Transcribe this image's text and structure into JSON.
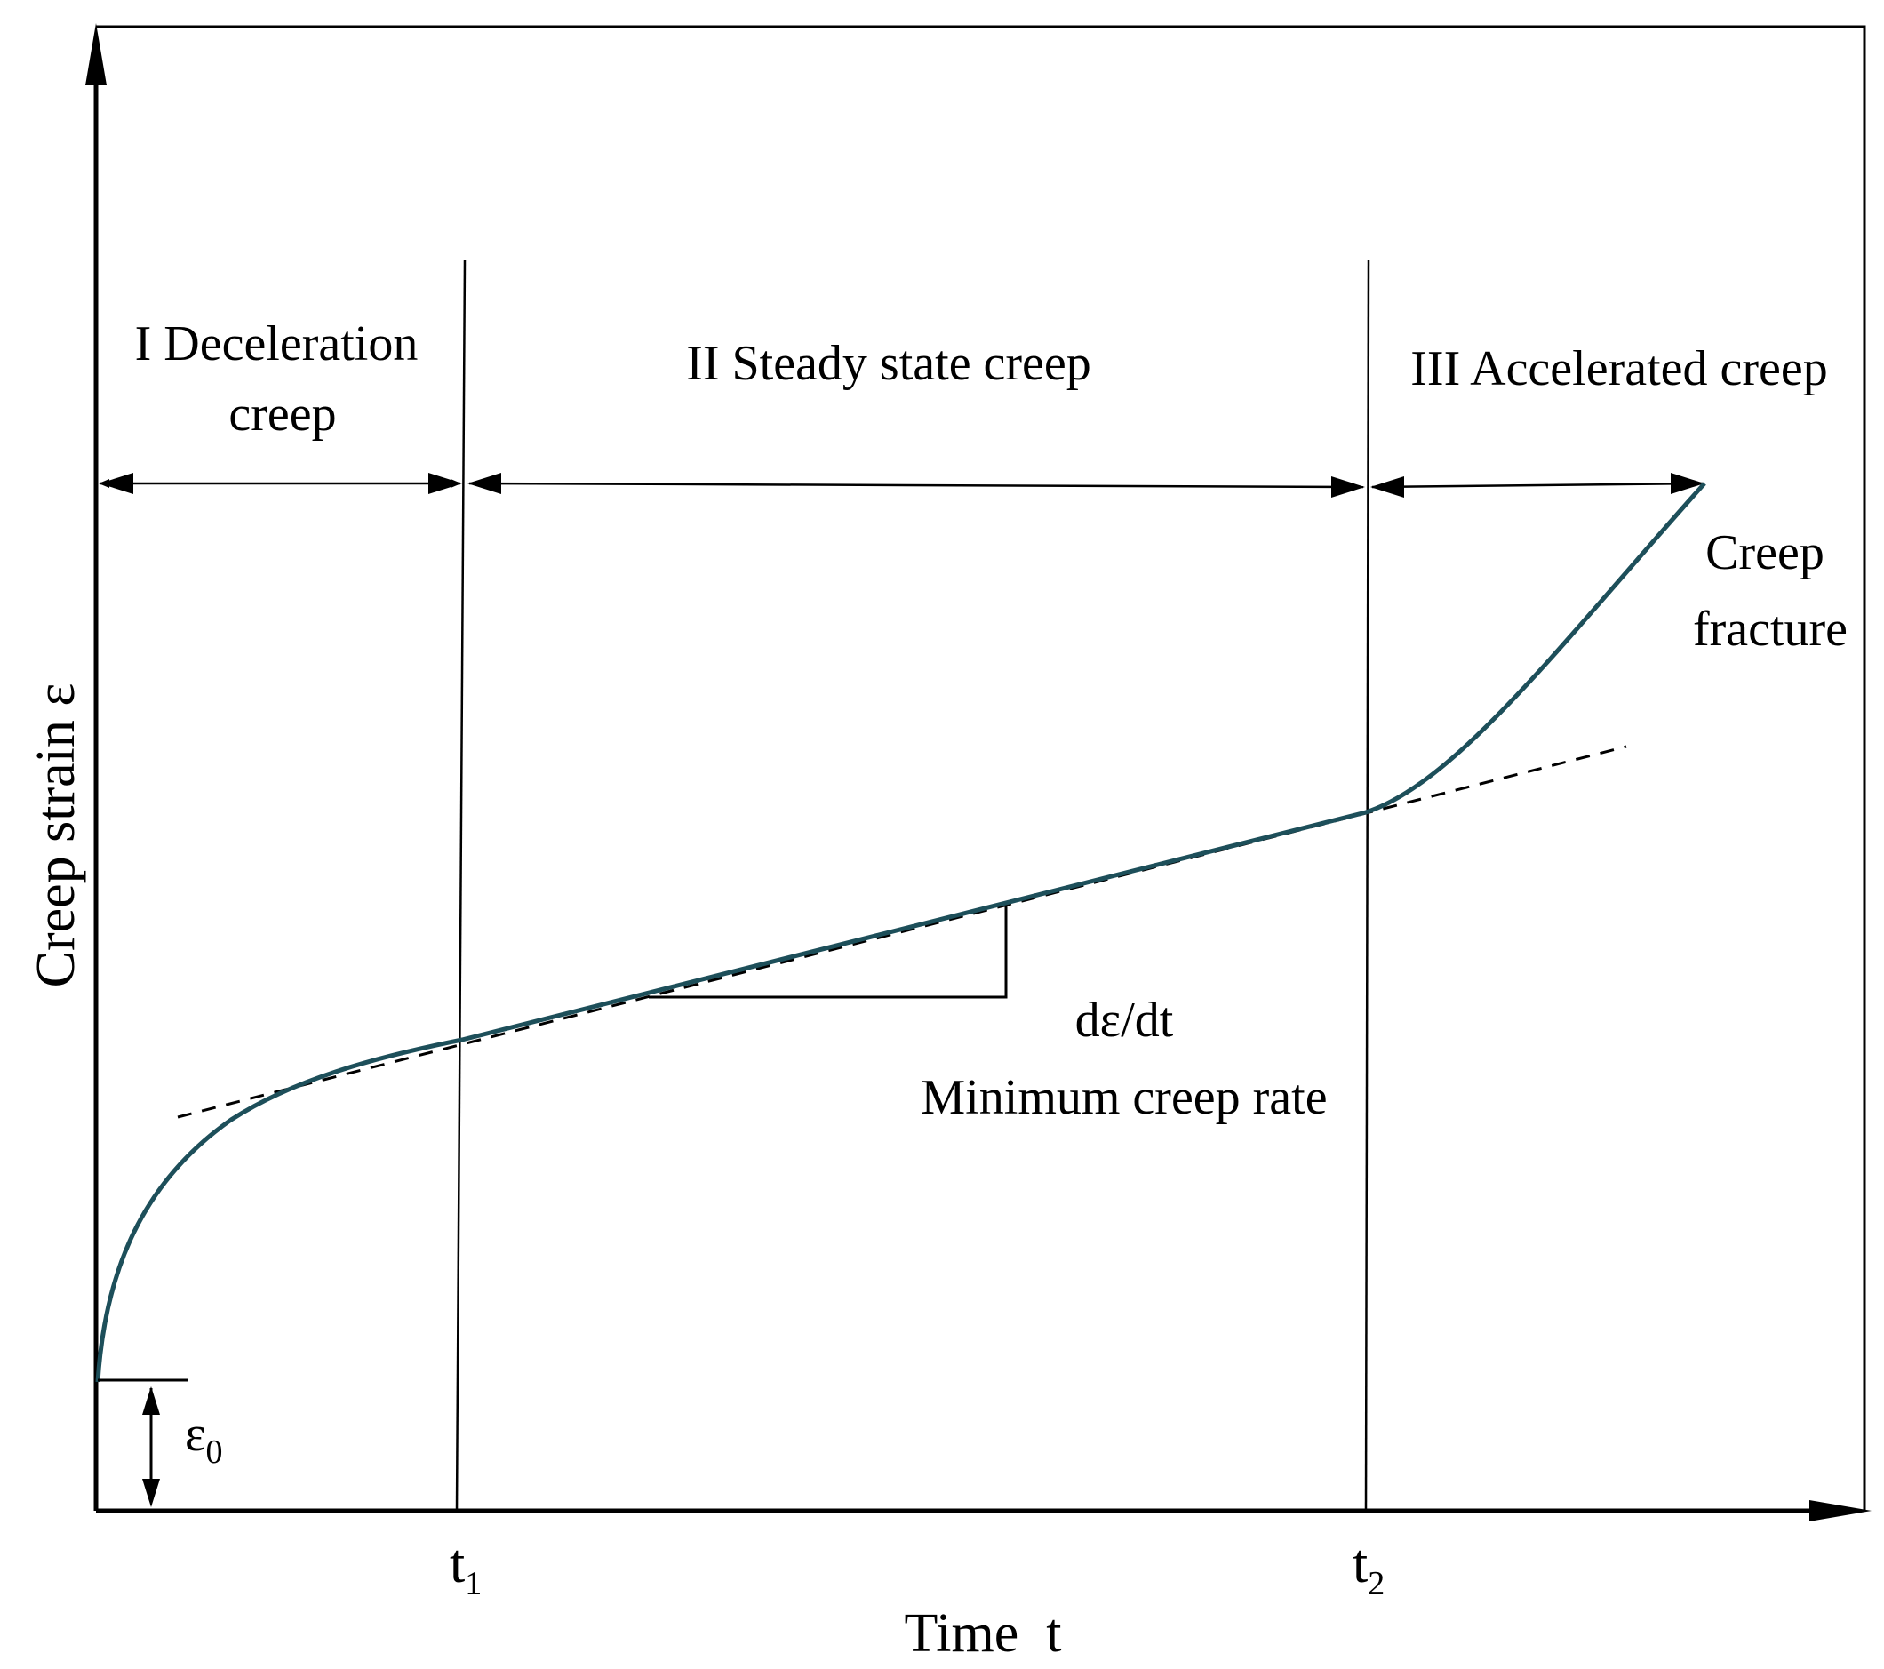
{
  "diagram": {
    "axes": {
      "y_label": "Creep strain ε",
      "x_label": "Time  t"
    },
    "ticks": {
      "t1": {
        "base": "t",
        "sub": "1"
      },
      "t2": {
        "base": "t",
        "sub": "2"
      }
    },
    "regions": {
      "stage1_line1": "I Deceleration",
      "stage1_line2": "creep",
      "stage2": "II Steady state creep",
      "stage3": "III Accelerated creep"
    },
    "annotations": {
      "fracture_line1": "Creep",
      "fracture_line2": "fracture",
      "rate_symbol": "dε/dt",
      "rate_label": "Minimum creep rate",
      "initial_strain": {
        "base": "ε",
        "sub": "0"
      }
    },
    "colors": {
      "curve": "#1d4f5a",
      "lines": "#000000",
      "background": "#ffffff"
    }
  }
}
